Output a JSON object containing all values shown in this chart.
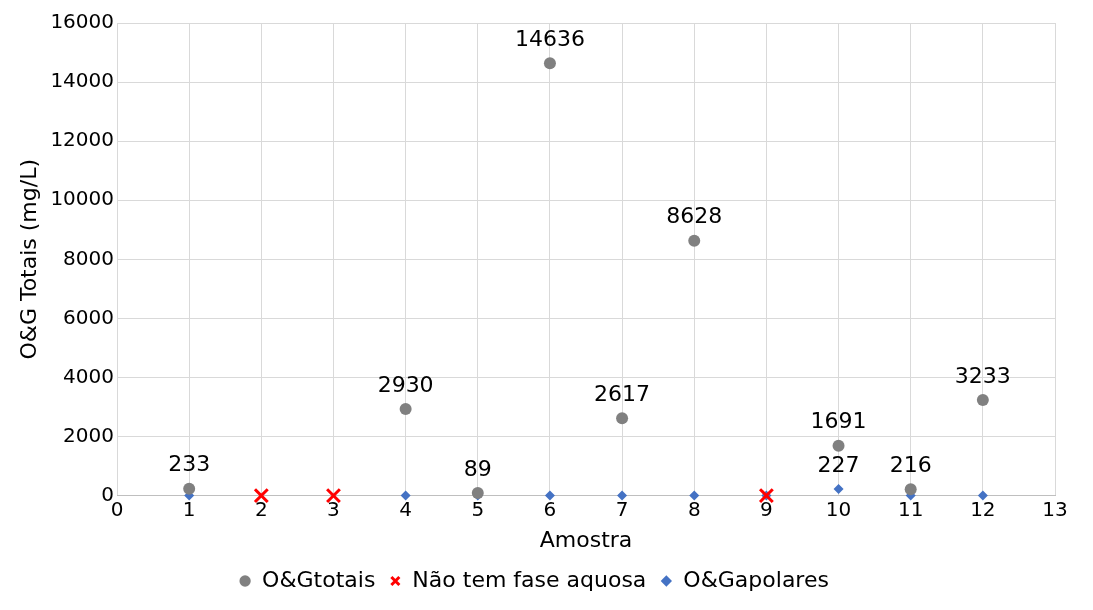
{
  "chart_data": {
    "type": "scatter",
    "xlabel": "Amostra",
    "ylabel": "O&G Totais (mg/L)",
    "xlim": [
      0,
      13
    ],
    "xticks": [
      0,
      1,
      2,
      3,
      4,
      5,
      6,
      7,
      8,
      9,
      10,
      11,
      12,
      13
    ],
    "ylim": [
      0,
      16000
    ],
    "yticks": [
      0,
      2000,
      4000,
      6000,
      8000,
      10000,
      12000,
      14000,
      16000
    ],
    "grid": true,
    "legend": "bottom",
    "series": [
      {
        "name": "O&Gtotais",
        "color": "#808080",
        "marker": "circle",
        "x": [
          1,
          4,
          5,
          6,
          7,
          8,
          10,
          11,
          12
        ],
        "values": [
          233,
          2930,
          89,
          14636,
          2617,
          8628,
          1691,
          216,
          3233
        ],
        "value_labels": [
          "233",
          "2930",
          "89",
          "14636",
          "2617",
          "8628",
          "1691",
          "216",
          "3233"
        ]
      },
      {
        "name": "Não tem fase aquosa",
        "color": "#ff0000",
        "marker": "cross",
        "x": [
          2,
          3,
          9
        ],
        "values": [
          0,
          0,
          0
        ]
      },
      {
        "name": "O&Gapolares",
        "color": "#4472c4",
        "marker": "diamond",
        "x": [
          1,
          4,
          5,
          6,
          7,
          8,
          9,
          10,
          11,
          12
        ],
        "values": [
          0,
          0,
          0,
          0,
          0,
          0,
          0,
          227,
          0,
          0
        ],
        "value_labels": [
          null,
          null,
          null,
          null,
          null,
          null,
          null,
          "227",
          null,
          null
        ]
      }
    ]
  }
}
